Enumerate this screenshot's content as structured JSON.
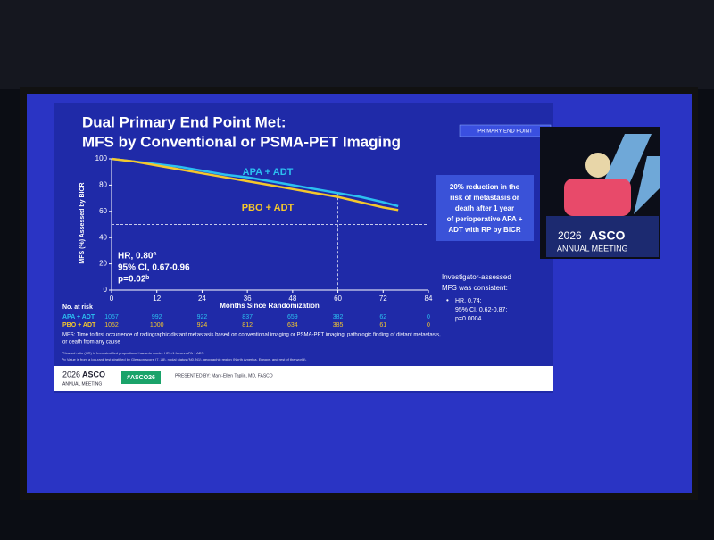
{
  "chart_data": {
    "type": "line",
    "title": [
      "Dual Primary End Point Met:",
      "MFS by Conventional or PSMA-PET Imaging"
    ],
    "badge": "PRIMARY END POINT",
    "x_label": "Months Since Randomization",
    "y_label": "MFS (%) Assessed by BICR",
    "x": [
      0,
      6,
      12,
      18,
      24,
      30,
      36,
      42,
      48,
      54,
      60,
      66,
      72,
      76
    ],
    "series": [
      {
        "name": "APA + ADT",
        "color": "#2cc0f0",
        "values": [
          100,
          98,
          96,
          94,
          91,
          88,
          86,
          83,
          80,
          77,
          74,
          71,
          67,
          64
        ]
      },
      {
        "name": "PBO + ADT",
        "color": "#f5c72c",
        "values": [
          100,
          98,
          95,
          92,
          89,
          86,
          83,
          80,
          77,
          74,
          71,
          67,
          63,
          61
        ]
      }
    ],
    "xlim": [
      0,
      84
    ],
    "xticks": [
      0,
      12,
      24,
      36,
      48,
      60,
      72,
      84
    ],
    "ylim": [
      0,
      100
    ],
    "yticks": [
      0,
      20,
      40,
      60,
      80,
      100
    ],
    "hline": 50,
    "vline": 60,
    "annotations": [
      "HR, 0.80ª",
      "95% CI, 0.67-0.96",
      "p=0.02ᵇ"
    ],
    "risk_table": {
      "title": "No. at risk",
      "rows": [
        {
          "name": "APA + ADT",
          "values": [
            1057,
            992,
            922,
            837,
            659,
            382,
            62,
            0
          ]
        },
        {
          "name": "PBO + ADT",
          "values": [
            1052,
            1000,
            924,
            812,
            634,
            385,
            61,
            0
          ]
        }
      ]
    }
  },
  "slide": {
    "box": [
      "20% reduction in the",
      "risk of metastasis or",
      "death after 1 year",
      "of perioperative APA +",
      "ADT with RP by BICR"
    ],
    "side": [
      "Investigator-assessed",
      "MFS was consistent:"
    ],
    "bullet": [
      "HR, 0.74;",
      "95% CI, 0.62-0.87;",
      "p=0.0004"
    ],
    "note": [
      "MFS: Time to first occurrence of radiographic distant metastasis based on conventional imaging or PSMA-PET imaging, pathologic finding of distant metastasis,",
      "or death from any cause"
    ],
    "footnotes": [
      "ªHazard ratio (HR) is from stratified proportional hazards model. HR <1 favors APA + ADT.",
      "ᵇp Value is from a log-rank test stratified by Gleason score (7, ≥8), nodal status (N0, N1), geographic region (North America, Europe, and rest of the world)."
    ],
    "footer": {
      "year": "2026",
      "brand": "ASCO",
      "meeting": "ANNUAL MEETING",
      "hashtag": "#ASCO26",
      "presenter": "PRESENTED BY: Mary-Ellen Taplin, MD, FASCO"
    },
    "screen": {
      "year": "2026",
      "brand": "ASCO",
      "meeting": "ANNUAL MEETING"
    }
  }
}
